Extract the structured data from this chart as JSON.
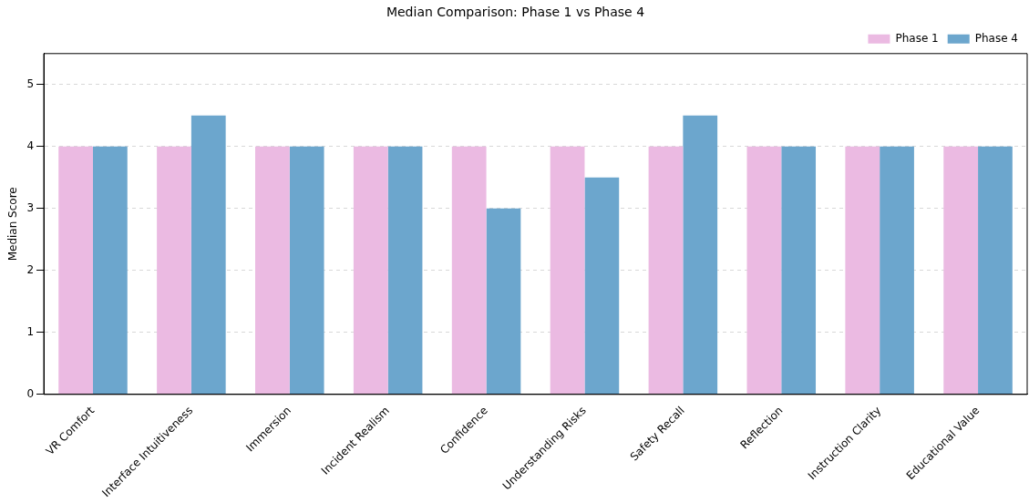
{
  "chart_data": {
    "type": "bar",
    "title": "Median Comparison: Phase 1 vs Phase 4",
    "ylabel": "Median Score",
    "categories": [
      "VR Comfort",
      "Interface Intuitiveness",
      "Immersion",
      "Incident Realism",
      "Confidence",
      "Understanding Risks",
      "Safety Recall",
      "Reflection",
      "Instruction Clarity",
      "Educational Value"
    ],
    "series": [
      {
        "name": "Phase 1",
        "color": "#ebbae2",
        "values": [
          4,
          4,
          4,
          4,
          4,
          4,
          4,
          4,
          4,
          4
        ]
      },
      {
        "name": "Phase 4",
        "color": "#6ca6cd",
        "values": [
          4,
          4.5,
          4,
          4,
          3,
          3.5,
          4.5,
          4,
          4,
          4
        ]
      }
    ],
    "ylim": [
      0,
      5.5
    ],
    "yticks": [
      0,
      1,
      2,
      3,
      4,
      5
    ],
    "grid": "y",
    "legend": "top right"
  }
}
